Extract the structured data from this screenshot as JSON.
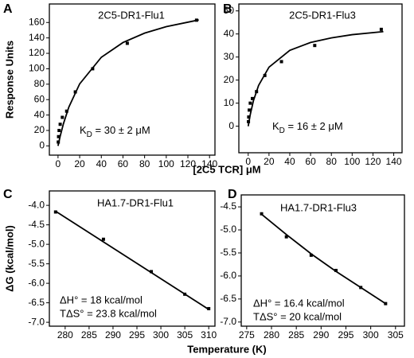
{
  "shared_labels": {
    "top_y": "Response Units",
    "top_x": "[2C5 TCR] μM",
    "bottom_y": "ΔG (kcal/mol)",
    "bottom_x": "Temperature (K)"
  },
  "chart_data": [
    {
      "type": "scatter",
      "panel": "A",
      "title": "2C5-DR1-Flu1",
      "annotation": {
        "main": "K",
        "sub": "D",
        "rest": " = 30 ± 2 μM"
      },
      "xlim": [
        -8,
        145
      ],
      "xticks": [
        0,
        20,
        40,
        60,
        80,
        100,
        120,
        140
      ],
      "ylim": [
        -12,
        184
      ],
      "yticks": [
        0,
        20,
        40,
        60,
        80,
        100,
        120,
        140,
        160
      ],
      "series": [
        {
          "kind": "scatter",
          "color": "#000000",
          "x": [
            0.25,
            0.5,
            1,
            2,
            4,
            8,
            16,
            32,
            64,
            128
          ],
          "values": [
            5,
            12,
            20,
            28,
            37,
            45,
            70,
            100,
            133,
            163
          ]
        },
        {
          "kind": "line",
          "color": "#000000",
          "x": [
            0,
            2,
            5,
            10,
            20,
            40,
            60,
            80,
            100,
            130
          ],
          "values": [
            0,
            12.6,
            28.7,
            50.3,
            80.4,
            114.9,
            134,
            146.2,
            154.6,
            163.3
          ]
        }
      ]
    },
    {
      "type": "scatter",
      "panel": "B",
      "title": "2C5-DR1-Flu3",
      "annotation": {
        "main": "K",
        "sub": "D",
        "rest": " = 16 ± 2 μM"
      },
      "xlim": [
        -9,
        148
      ],
      "xticks": [
        0,
        20,
        40,
        60,
        80,
        100,
        120,
        140
      ],
      "ylim": [
        -11.5,
        53
      ],
      "yticks": [
        0,
        10,
        20,
        30,
        40,
        50
      ],
      "series": [
        {
          "kind": "scatter",
          "color": "#000000",
          "x": [
            0.25,
            0.5,
            1,
            2,
            4,
            8,
            16,
            32,
            64,
            128
          ],
          "values": [
            2,
            4,
            7,
            10,
            12,
            15,
            22,
            28,
            35,
            42
          ]
        },
        {
          "kind": "line",
          "color": "#000000",
          "x": [
            0,
            2,
            5,
            10,
            20,
            40,
            60,
            80,
            100,
            130
          ],
          "values": [
            0,
            5.1,
            11,
            17.7,
            25.6,
            32.9,
            36.3,
            38.3,
            39.7,
            41
          ]
        }
      ]
    },
    {
      "type": "scatter",
      "panel": "C",
      "title": "HA1.7-DR1-Flu1",
      "annotation_lines": [
        "ΔH° = 18 kcal/mol",
        "TΔS° = 23.8 kcal/mol"
      ],
      "xlim": [
        276.7,
        311.3
      ],
      "xticks": [
        280,
        285,
        290,
        295,
        300,
        305,
        310
      ],
      "ylim": [
        -7.1,
        -3.63
      ],
      "yticks": [
        {
          "value": -4,
          "label": "-4.0"
        },
        -4.5,
        {
          "value": -5,
          "label": "-5.0"
        },
        -5.5,
        {
          "value": -6,
          "label": "-6.0"
        },
        -6.5,
        {
          "value": -7,
          "label": "-7.0"
        }
      ],
      "series": [
        {
          "kind": "scatter",
          "color": "#000000",
          "x": [
            278,
            288,
            298,
            305,
            310
          ],
          "values": [
            -4.17,
            -4.87,
            -5.7,
            -6.28,
            -6.65
          ]
        },
        {
          "kind": "line",
          "color": "#000000",
          "x": [
            278,
            310
          ],
          "values": [
            -4.15,
            -6.67
          ]
        }
      ]
    },
    {
      "type": "scatter",
      "panel": "D",
      "title": "HA1.7-DR1-Flu3",
      "annotation_lines": [
        "ΔH° = 16.4 kcal/mol",
        "TΔS° = 20 kcal/mol"
      ],
      "xlim": [
        273.9,
        306.8
      ],
      "xticks": [
        275,
        280,
        285,
        290,
        295,
        300,
        305
      ],
      "ylim": [
        -7.09,
        -4.24
      ],
      "yticks": [
        -4.5,
        {
          "value": -5,
          "label": "-5.0"
        },
        -5.5,
        {
          "value": -6,
          "label": "-6.0"
        },
        -6.5,
        {
          "value": -7,
          "label": "-7.0"
        }
      ],
      "series": [
        {
          "kind": "scatter",
          "color": "#000000",
          "x": [
            278,
            283,
            288,
            293,
            298,
            303
          ],
          "values": [
            -4.65,
            -5.15,
            -5.55,
            -5.88,
            -6.25,
            -6.6
          ]
        },
        {
          "kind": "line",
          "color": "#000000",
          "x": [
            278,
            283,
            288,
            293,
            298,
            303
          ],
          "values": [
            -4.66,
            -5.1,
            -5.52,
            -5.9,
            -6.25,
            -6.6
          ]
        }
      ]
    }
  ]
}
